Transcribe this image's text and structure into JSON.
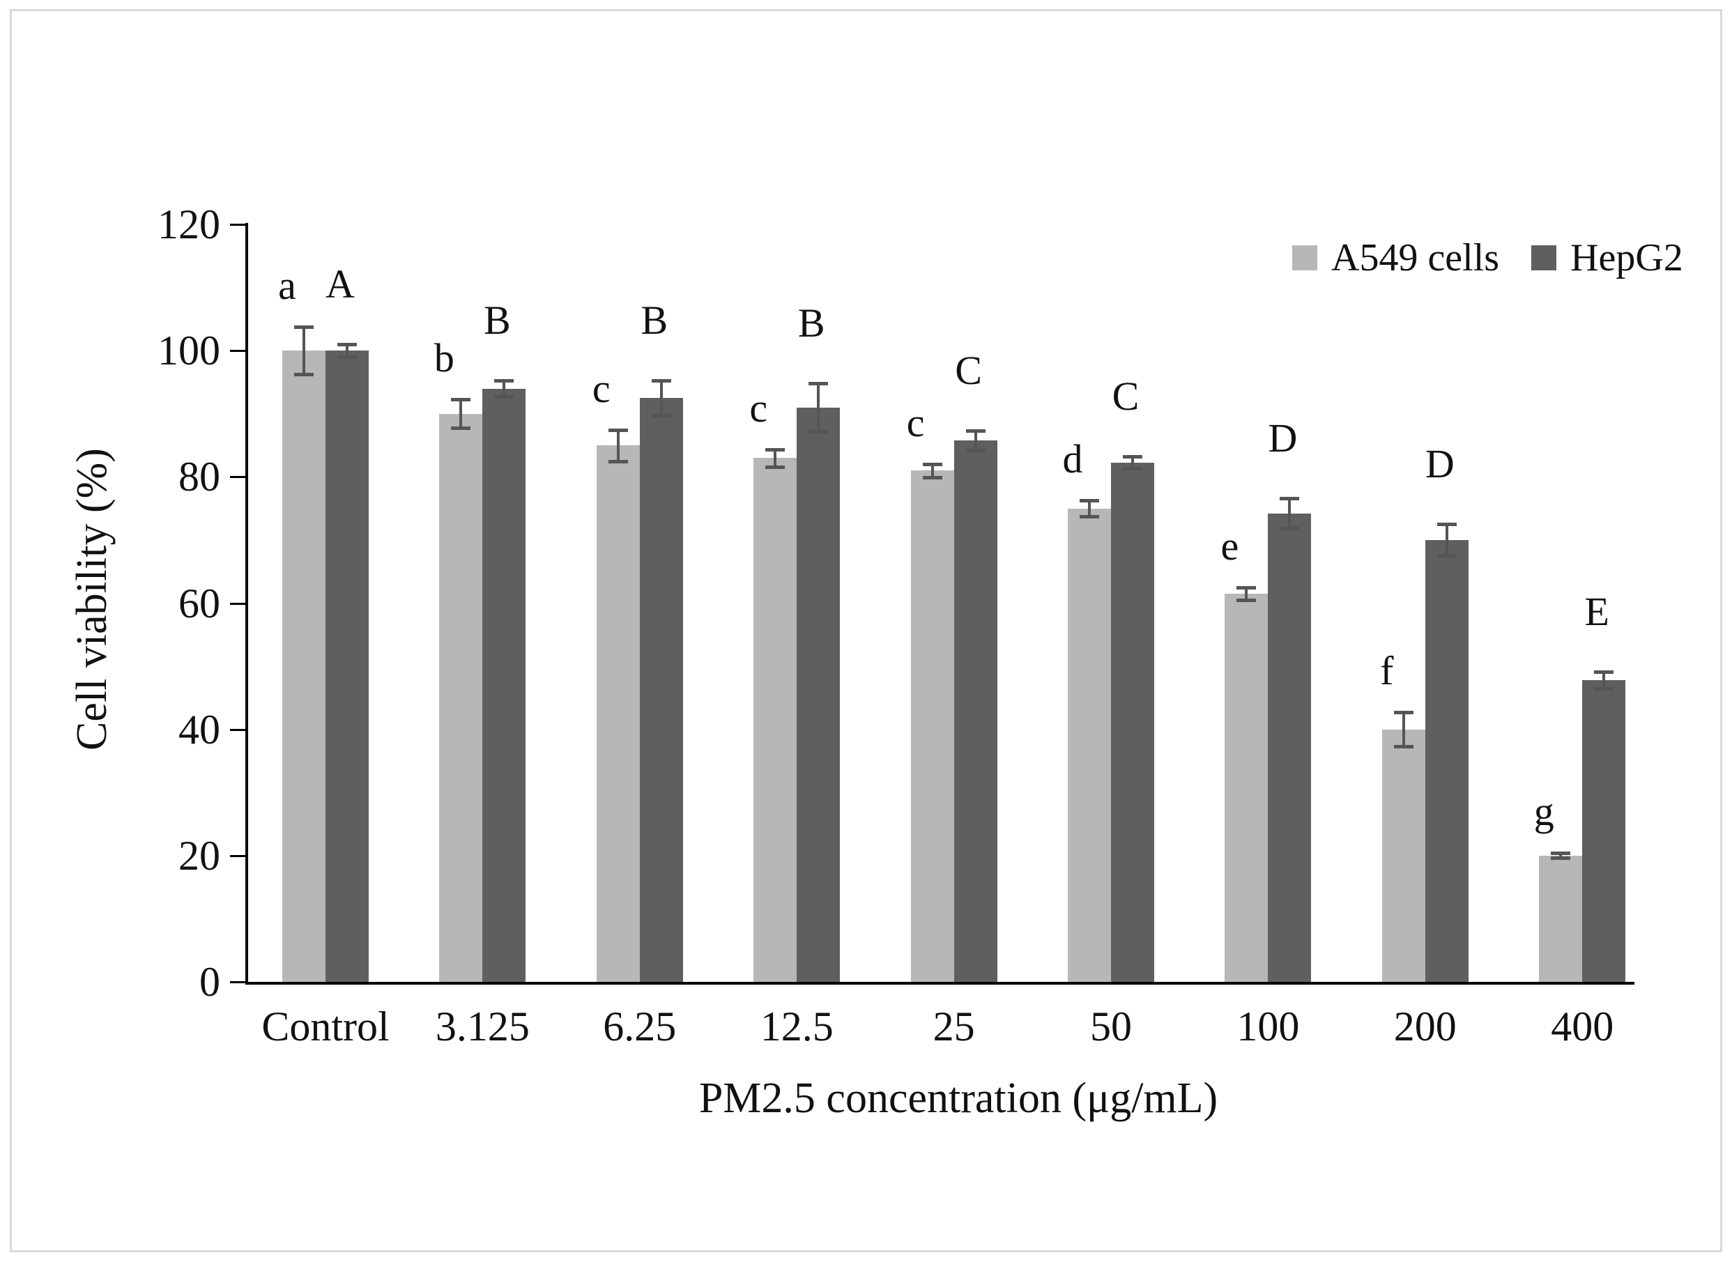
{
  "figure": {
    "background": "#ffffff",
    "border_color": "#d9d9d9"
  },
  "chart_data": {
    "type": "bar",
    "title": "",
    "xlabel": "PM2.5 concentration (μg/mL)",
    "ylabel": "Cell viability (%)",
    "ylim": [
      0,
      120
    ],
    "yticks": [
      0,
      20,
      40,
      60,
      80,
      100,
      120
    ],
    "grid": false,
    "legend_position": "top-right",
    "categories": [
      "Control",
      "3.125",
      "6.25",
      "12.5",
      "25",
      "50",
      "100",
      "200",
      "400"
    ],
    "series": [
      {
        "name": "A549 cells",
        "color": "#b7b7b7",
        "values": [
          100,
          90,
          85,
          83,
          81,
          75,
          61.5,
          40,
          20
        ],
        "errors": [
          4,
          2.5,
          2.7,
          1.6,
          1.3,
          1.5,
          1.2,
          2.9,
          0.6
        ],
        "letters": [
          "a",
          "b",
          "c",
          "c",
          "c",
          "d",
          "e",
          "f",
          "g"
        ]
      },
      {
        "name": "HepG2",
        "color": "#5f5f5f",
        "values": [
          100,
          94,
          92.5,
          91,
          85.8,
          82.3,
          74.2,
          70,
          47.8
        ],
        "errors": [
          1.2,
          1.5,
          3.0,
          4.0,
          1.8,
          1.2,
          2.6,
          2.7,
          1.5
        ],
        "letters": [
          "A",
          "B",
          "B",
          "B",
          "C",
          "C",
          "D",
          "D",
          "E"
        ]
      }
    ],
    "error_bar_color": "#555555",
    "axis_color": "#000000",
    "text_color": "#111111"
  }
}
